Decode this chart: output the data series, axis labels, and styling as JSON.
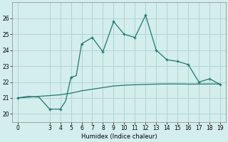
{
  "xlabel": "Humidex (Indice chaleur)",
  "bg_color": "#d4eded",
  "grid_color": "#b0d4d4",
  "line_color": "#1a7a6e",
  "xlim": [
    -0.5,
    19.5
  ],
  "ylim": [
    19.5,
    27.0
  ],
  "xticks": [
    0,
    3,
    4,
    5,
    6,
    7,
    8,
    9,
    10,
    11,
    12,
    13,
    14,
    15,
    16,
    17,
    18,
    19
  ],
  "yticks": [
    20,
    21,
    22,
    23,
    24,
    25,
    26
  ],
  "s1_x": [
    0,
    1,
    2,
    3,
    4,
    4.5,
    5,
    5.0,
    5.5,
    6,
    7,
    8,
    9,
    10,
    11,
    12,
    13,
    14,
    15,
    16,
    17,
    18,
    19
  ],
  "s1_y": [
    21.0,
    21.1,
    21.05,
    20.3,
    20.3,
    20.8,
    22.3,
    22.3,
    22.4,
    24.4,
    24.8,
    23.9,
    25.8,
    25.0,
    24.8,
    26.2,
    24.0,
    23.4,
    23.3,
    23.1,
    22.0,
    22.2,
    21.85
  ],
  "s1_markers_x": [
    0,
    3,
    4,
    5,
    6,
    7,
    8,
    9,
    10,
    11,
    12,
    13,
    14,
    15,
    16,
    17,
    18,
    19
  ],
  "s1_markers_y": [
    21.0,
    20.3,
    20.3,
    22.3,
    24.4,
    24.8,
    23.9,
    25.8,
    25.0,
    24.8,
    26.2,
    24.0,
    23.4,
    23.3,
    23.1,
    22.0,
    22.2,
    21.85
  ],
  "s2_x": [
    0,
    1,
    2,
    3,
    4,
    5,
    6,
    7,
    8,
    9,
    10,
    11,
    12,
    13,
    14,
    15,
    16,
    17,
    18,
    19
  ],
  "s2_y": [
    21.0,
    21.05,
    21.1,
    21.15,
    21.2,
    21.3,
    21.45,
    21.55,
    21.65,
    21.75,
    21.8,
    21.83,
    21.85,
    21.87,
    21.88,
    21.88,
    21.87,
    21.87,
    21.88,
    21.87
  ]
}
